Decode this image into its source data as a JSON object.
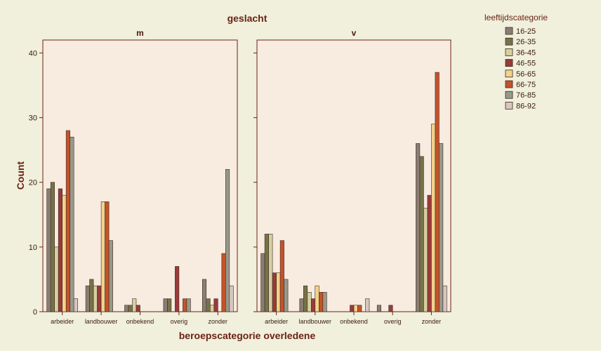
{
  "chart_data": {
    "type": "bar",
    "title": "geslacht",
    "xlabel": "beroepscategorie overledene",
    "ylabel": "Count",
    "ylim": [
      0,
      42
    ],
    "yticks": [
      0,
      10,
      20,
      30,
      40
    ],
    "grid": false,
    "legend_position": "top-right",
    "legend_title": "leeftijdscategorie",
    "categories": [
      "arbeider",
      "landbouwer",
      "onbekend",
      "overig",
      "zonder"
    ],
    "series_meta": [
      {
        "name": "16-25",
        "color": "#8b7d73"
      },
      {
        "name": "26-35",
        "color": "#777349"
      },
      {
        "name": "36-45",
        "color": "#d8cfa0"
      },
      {
        "name": "46-55",
        "color": "#9b3a3a"
      },
      {
        "name": "56-65",
        "color": "#f4d28a"
      },
      {
        "name": "66-75",
        "color": "#c4532a"
      },
      {
        "name": "76-85",
        "color": "#99998a"
      },
      {
        "name": "86-92",
        "color": "#d6c6c0"
      }
    ],
    "panels": [
      {
        "label": "m",
        "series": [
          {
            "name": "16-25",
            "values": [
              19,
              4,
              1,
              2,
              5
            ]
          },
          {
            "name": "26-35",
            "values": [
              20,
              5,
              1,
              2,
              2
            ]
          },
          {
            "name": "36-45",
            "values": [
              10,
              4,
              2,
              0,
              1
            ]
          },
          {
            "name": "46-55",
            "values": [
              19,
              4,
              1,
              7,
              2
            ]
          },
          {
            "name": "56-65",
            "values": [
              18,
              17,
              0,
              0,
              0
            ]
          },
          {
            "name": "66-75",
            "values": [
              28,
              17,
              0,
              2,
              9
            ]
          },
          {
            "name": "76-85",
            "values": [
              27,
              11,
              0,
              2,
              22
            ]
          },
          {
            "name": "86-92",
            "values": [
              2,
              0,
              0,
              0,
              4
            ]
          }
        ]
      },
      {
        "label": "v",
        "series": [
          {
            "name": "16-25",
            "values": [
              9,
              2,
              0,
              1,
              26
            ]
          },
          {
            "name": "26-35",
            "values": [
              12,
              4,
              0,
              0,
              24
            ]
          },
          {
            "name": "36-45",
            "values": [
              12,
              3,
              0,
              0,
              16
            ]
          },
          {
            "name": "46-55",
            "values": [
              6,
              2,
              1,
              1,
              18
            ]
          },
          {
            "name": "56-65",
            "values": [
              6,
              4,
              1,
              0,
              29
            ]
          },
          {
            "name": "66-75",
            "values": [
              11,
              3,
              1,
              0,
              37
            ]
          },
          {
            "name": "76-85",
            "values": [
              5,
              3,
              0,
              0,
              26
            ]
          },
          {
            "name": "86-92",
            "values": [
              0,
              0,
              2,
              0,
              4
            ]
          }
        ]
      }
    ]
  }
}
